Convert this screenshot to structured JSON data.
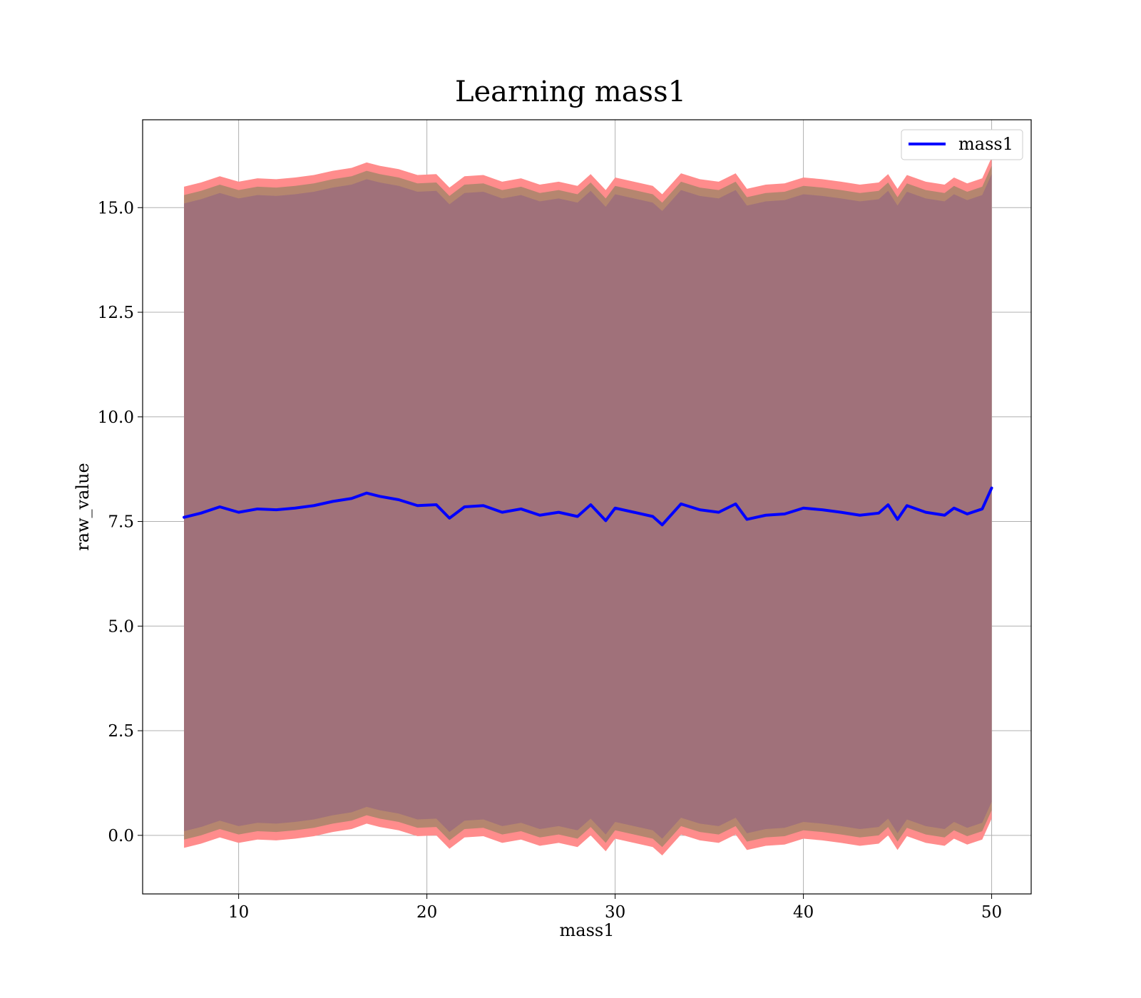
{
  "chart_data": {
    "type": "line",
    "title": "Learning mass1",
    "xlabel": "mass1",
    "ylabel": "raw_value",
    "xlim": [
      4.9,
      52.1
    ],
    "ylim": [
      -1.4,
      17.1
    ],
    "xticks": [
      10,
      20,
      30,
      40,
      50
    ],
    "xtick_labels": [
      "10",
      "20",
      "30",
      "40",
      "50"
    ],
    "yticks": [
      0.0,
      2.5,
      5.0,
      7.5,
      10.0,
      12.5,
      15.0
    ],
    "ytick_labels": [
      "0.0",
      "2.5",
      "5.0",
      "7.5",
      "10.0",
      "12.5",
      "15.0"
    ],
    "grid": true,
    "legend_position": "top-right",
    "legend": [
      "mass1"
    ],
    "colors": {
      "line": "#0000ff",
      "band_outer": "#ff8c8c",
      "band_mid": "#b5866f",
      "band_inner": "#a0717a",
      "grid": "#b0b0b0"
    },
    "series": [
      {
        "name": "mass1",
        "x": [
          7.1,
          8.0,
          9.0,
          10.0,
          11.0,
          12.0,
          13.0,
          14.0,
          15.0,
          16.0,
          16.8,
          17.5,
          18.5,
          19.5,
          20.5,
          21.2,
          22.0,
          23.0,
          24.0,
          25.0,
          26.0,
          27.0,
          28.0,
          28.7,
          29.5,
          30.0,
          31.0,
          32.0,
          32.5,
          33.5,
          34.5,
          35.5,
          36.4,
          37.0,
          38.0,
          39.0,
          40.0,
          41.0,
          42.0,
          43.0,
          44.0,
          44.5,
          45.0,
          45.5,
          46.5,
          47.5,
          48.0,
          48.7,
          49.5,
          50.0
        ],
        "y": [
          7.6,
          7.7,
          7.85,
          7.72,
          7.8,
          7.78,
          7.82,
          7.88,
          7.98,
          8.05,
          8.18,
          8.1,
          8.02,
          7.88,
          7.9,
          7.58,
          7.85,
          7.88,
          7.72,
          7.8,
          7.65,
          7.72,
          7.62,
          7.9,
          7.52,
          7.82,
          7.72,
          7.62,
          7.42,
          7.92,
          7.78,
          7.72,
          7.92,
          7.55,
          7.65,
          7.68,
          7.82,
          7.78,
          7.72,
          7.65,
          7.7,
          7.9,
          7.55,
          7.88,
          7.72,
          7.65,
          7.82,
          7.68,
          7.8,
          8.3
        ]
      }
    ],
    "band_halfwidth": {
      "outer": 7.9,
      "mid": 7.7,
      "inner": 7.5
    }
  }
}
